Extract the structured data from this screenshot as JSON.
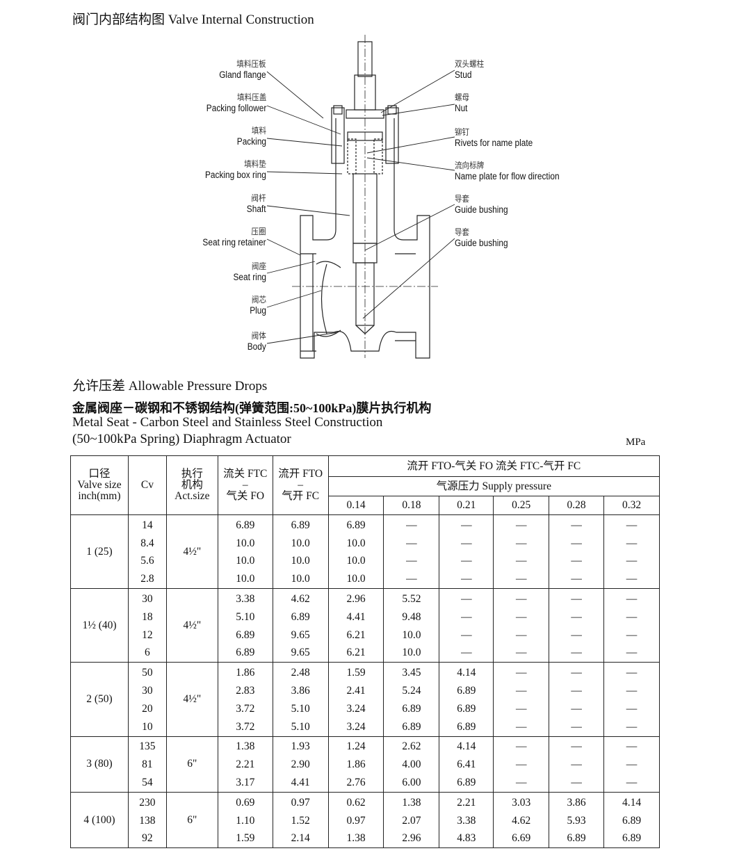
{
  "diagram": {
    "title": "阀门内部结构图  Valve Internal Construction",
    "left_labels": [
      {
        "cn": "填料压板",
        "en": "Gland flange"
      },
      {
        "cn": "填料压盖",
        "en": "Packing follower"
      },
      {
        "cn": "填料",
        "en": "Packing"
      },
      {
        "cn": "填料垫",
        "en": "Packing box ring"
      },
      {
        "cn": "阀杆",
        "en": "Shaft"
      },
      {
        "cn": "压圈",
        "en": "Seat ring retainer"
      },
      {
        "cn": "阀座",
        "en": "Seat ring"
      },
      {
        "cn": "阀芯",
        "en": "Plug"
      },
      {
        "cn": "阀体",
        "en": "Body"
      }
    ],
    "right_labels": [
      {
        "cn": "双头螺柱",
        "en": "Stud"
      },
      {
        "cn": "螺母",
        "en": "Nut"
      },
      {
        "cn": "铆钉",
        "en": "Rivets for name plate"
      },
      {
        "cn": "流向标牌",
        "en": "Name plate for flow direction"
      },
      {
        "cn": "导套",
        "en": "Guide bushing"
      },
      {
        "cn": "导套",
        "en": "Guide bushing"
      }
    ]
  },
  "section": {
    "title": "允许压差  Allowable Pressure Drops",
    "subtitle_cn": "金属阀座－碳钢和不锈钢结构(弹簧范围:50~100kPa)膜片执行机构",
    "subtitle_en1": "Metal Seat - Carbon Steel and Stainless Steel Construction",
    "subtitle_en2": "(50~100kPa Spring) Diaphragm Actuator",
    "unit": "MPa"
  },
  "table": {
    "headers": {
      "valve_size": [
        "口径",
        "Valve size",
        "inch(mm)"
      ],
      "cv": "Cv",
      "act_size": [
        "执行",
        "机构",
        "Act.size"
      ],
      "ftc_fo": [
        "流关 FTC",
        "–",
        "气关 FO"
      ],
      "fto_fc": [
        "流开 FTO",
        "–",
        "气开 FC"
      ],
      "group": "流开 FTO-气关 FO   流关 FTC-气开 FC",
      "supply": "气源压力 Supply pressure",
      "pressures": [
        "0.14",
        "0.18",
        "0.21",
        "0.25",
        "0.28",
        "0.32"
      ]
    },
    "groups": [
      {
        "size": "1 (25)",
        "act": "4½\"",
        "rows": [
          [
            "14",
            "6.89",
            "6.89",
            "6.89",
            "—",
            "—",
            "—",
            "—",
            "—"
          ],
          [
            "8.4",
            "10.0",
            "10.0",
            "10.0",
            "—",
            "—",
            "—",
            "—",
            "—"
          ],
          [
            "5.6",
            "10.0",
            "10.0",
            "10.0",
            "—",
            "—",
            "—",
            "—",
            "—"
          ],
          [
            "2.8",
            "10.0",
            "10.0",
            "10.0",
            "—",
            "—",
            "—",
            "—",
            "—"
          ]
        ]
      },
      {
        "size": "1½ (40)",
        "act": "4½\"",
        "rows": [
          [
            "30",
            "3.38",
            "4.62",
            "2.96",
            "5.52",
            "—",
            "—",
            "—",
            "—"
          ],
          [
            "18",
            "5.10",
            "6.89",
            "4.41",
            "9.48",
            "—",
            "—",
            "—",
            "—"
          ],
          [
            "12",
            "6.89",
            "9.65",
            "6.21",
            "10.0",
            "—",
            "—",
            "—",
            "—"
          ],
          [
            "6",
            "6.89",
            "9.65",
            "6.21",
            "10.0",
            "—",
            "—",
            "—",
            "—"
          ]
        ]
      },
      {
        "size": "2 (50)",
        "act": "4½\"",
        "rows": [
          [
            "50",
            "1.86",
            "2.48",
            "1.59",
            "3.45",
            "4.14",
            "—",
            "—",
            "—"
          ],
          [
            "30",
            "2.83",
            "3.86",
            "2.41",
            "5.24",
            "6.89",
            "—",
            "—",
            "—"
          ],
          [
            "20",
            "3.72",
            "5.10",
            "3.24",
            "6.89",
            "6.89",
            "—",
            "—",
            "—"
          ],
          [
            "10",
            "3.72",
            "5.10",
            "3.24",
            "6.89",
            "6.89",
            "—",
            "—",
            "—"
          ]
        ]
      },
      {
        "size": "3 (80)",
        "act": "6\"",
        "rows": [
          [
            "135",
            "1.38",
            "1.93",
            "1.24",
            "2.62",
            "4.14",
            "—",
            "—",
            "—"
          ],
          [
            "81",
            "2.21",
            "2.90",
            "1.86",
            "4.00",
            "6.41",
            "—",
            "—",
            "—"
          ],
          [
            "54",
            "3.17",
            "4.41",
            "2.76",
            "6.00",
            "6.89",
            "—",
            "—",
            "—"
          ]
        ]
      },
      {
        "size": "4 (100)",
        "act": "6\"",
        "rows": [
          [
            "230",
            "0.69",
            "0.97",
            "0.62",
            "1.38",
            "2.21",
            "3.03",
            "3.86",
            "4.14"
          ],
          [
            "138",
            "1.10",
            "1.52",
            "0.97",
            "2.07",
            "3.38",
            "4.62",
            "5.93",
            "6.89"
          ],
          [
            "92",
            "1.59",
            "2.14",
            "1.38",
            "2.96",
            "4.83",
            "6.69",
            "6.89",
            "6.89"
          ]
        ]
      }
    ]
  }
}
